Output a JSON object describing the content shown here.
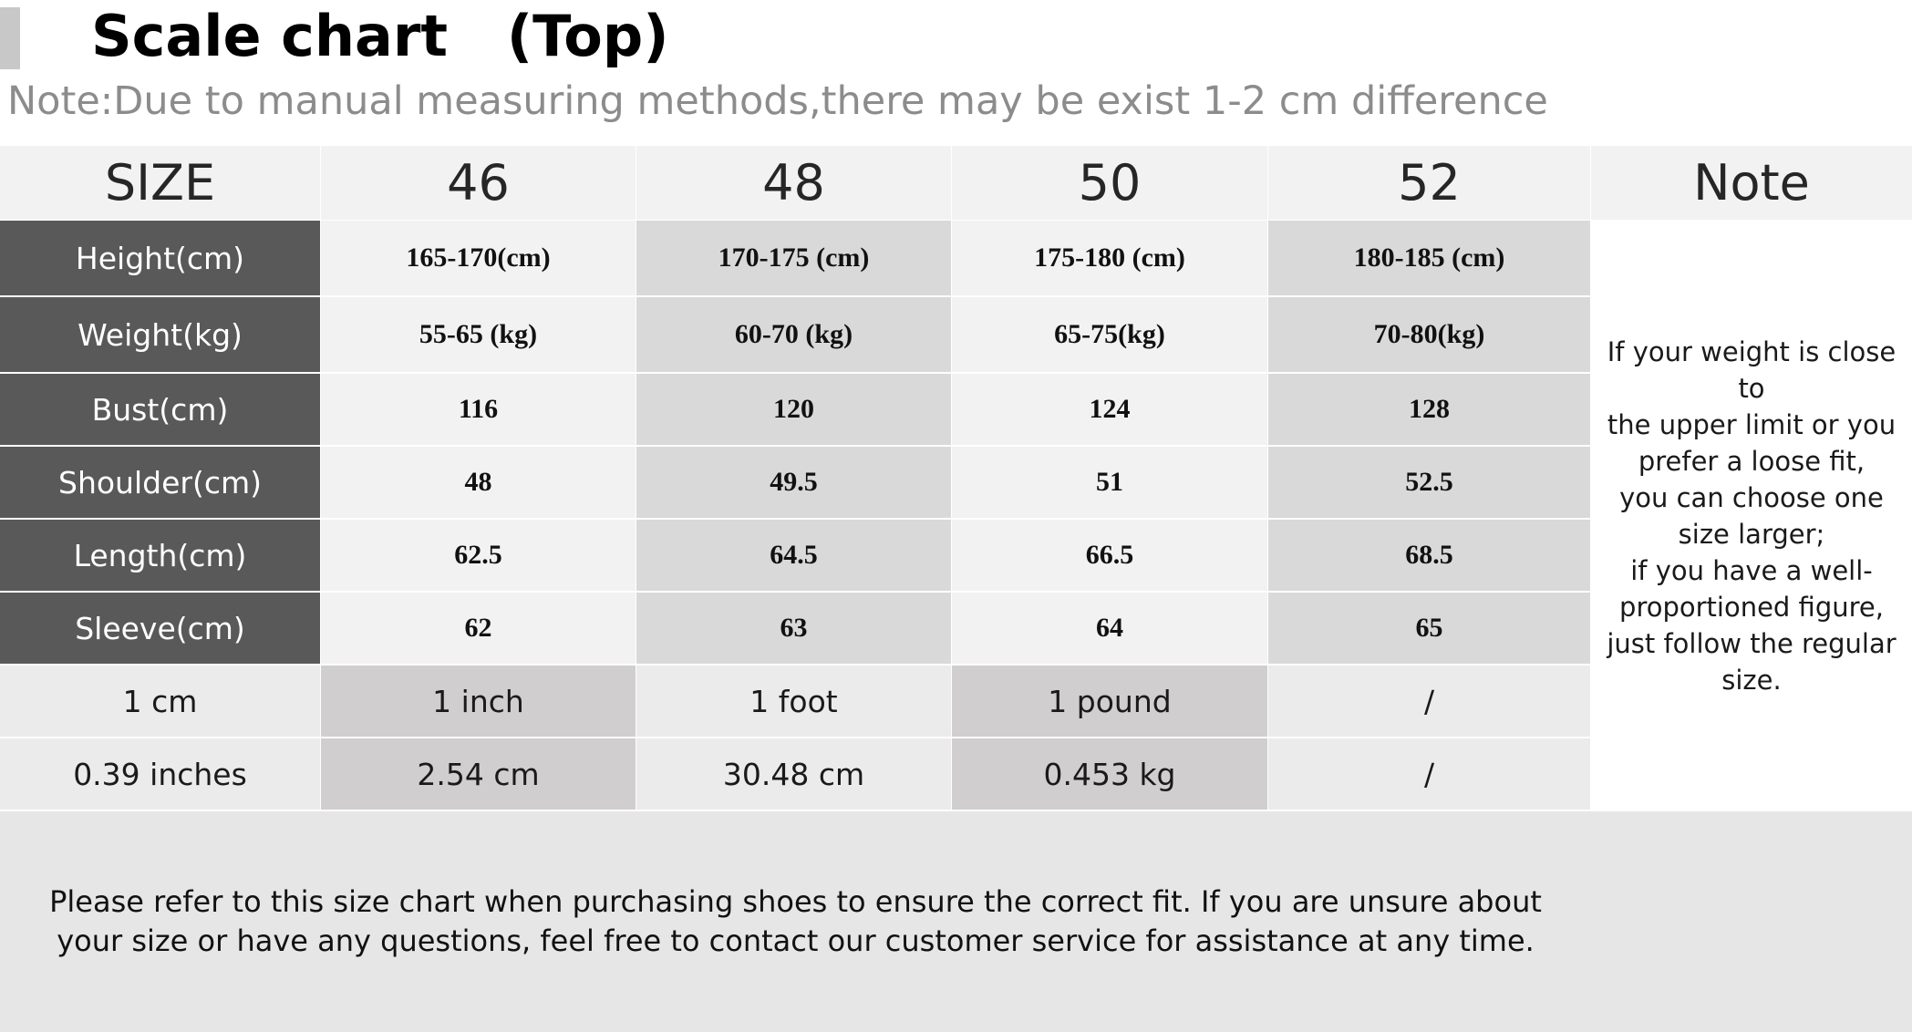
{
  "header": {
    "title": "Scale chart   (Top)",
    "note": "Note:Due to manual measuring methods,there may be exist 1-2 cm difference"
  },
  "table": {
    "size_label": "SIZE",
    "sizes": [
      "46",
      "48",
      "50",
      "52"
    ],
    "note_label": "Note",
    "rows": [
      {
        "label": "Height(cm)",
        "values": [
          "165-170(cm)",
          "170-175 (cm)",
          "175-180 (cm)",
          "180-185 (cm)"
        ]
      },
      {
        "label": "Weight(kg)",
        "values": [
          "55-65 (kg)",
          "60-70 (kg)",
          "65-75(kg)",
          "70-80(kg)"
        ]
      },
      {
        "label": "Bust(cm)",
        "values": [
          "116",
          "120",
          "124",
          "128"
        ]
      },
      {
        "label": "Shoulder(cm)",
        "values": [
          "48",
          "49.5",
          "51",
          "52.5"
        ]
      },
      {
        "label": "Length(cm)",
        "values": [
          "62.5",
          "64.5",
          "66.5",
          "68.5"
        ]
      },
      {
        "label": "Sleeve(cm)",
        "values": [
          "62",
          "63",
          "64",
          "65"
        ]
      }
    ],
    "conversions": [
      [
        "1 cm",
        "1 inch",
        "1 foot",
        "1 pound",
        "/"
      ],
      [
        "0.39 inches",
        "2.54 cm",
        "30.48 cm",
        "0.453 kg",
        "/"
      ]
    ],
    "note_text": "If your weight is close to\nthe upper limit or you\nprefer a loose fit,\nyou can choose one\nsize larger;\nif you have a well-\nproportioned figure,\njust follow the regular\nsize."
  },
  "footer": {
    "text": "Please refer to this size chart when purchasing shoes to ensure the correct fit. If you are unsure about your size or have any questions, feel free to contact our customer service for assistance at any time."
  },
  "colors": {
    "label_bg": "#595959",
    "header_bg": "#f2f2f2",
    "alt_col_bg": "#d9d9d9",
    "footer_bg": "#e6e6e6"
  }
}
